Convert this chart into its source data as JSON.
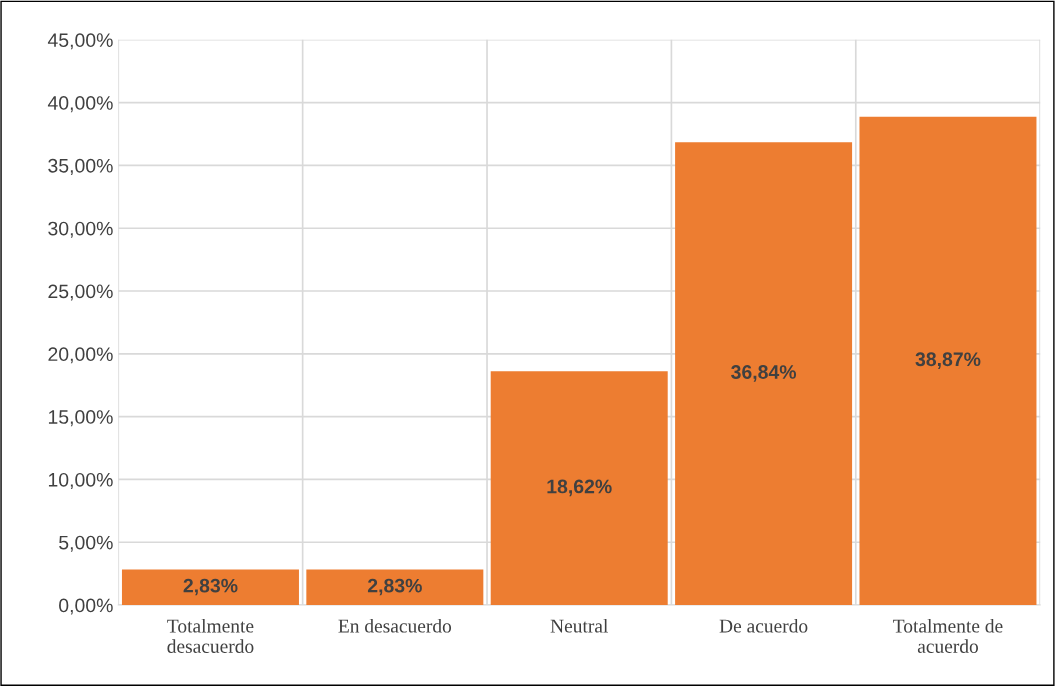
{
  "chart_data": {
    "type": "bar",
    "categories": [
      "Totalmente\ndesacuerdo",
      "En desacuerdo",
      "Neutral",
      "De acuerdo",
      "Totalmente de\nacuerdo"
    ],
    "values": [
      2.83,
      2.83,
      18.62,
      36.84,
      38.87
    ],
    "value_labels": [
      "2,83%",
      "2,83%",
      "18,62%",
      "36,84%",
      "38,87%"
    ],
    "color": "#ed7d31",
    "ylim": [
      0,
      45
    ],
    "yticks": [
      {
        "value": 0,
        "label": "0,00%"
      },
      {
        "value": 5,
        "label": "5,00%"
      },
      {
        "value": 10,
        "label": "10,00%"
      },
      {
        "value": 15,
        "label": "15,00%"
      },
      {
        "value": 20,
        "label": "20,00%"
      },
      {
        "value": 25,
        "label": "25,00%"
      },
      {
        "value": 30,
        "label": "30,00%"
      },
      {
        "value": 35,
        "label": "35,00%"
      },
      {
        "value": 40,
        "label": "40,00%"
      },
      {
        "value": 45,
        "label": "45,00%"
      }
    ],
    "grid": true
  }
}
